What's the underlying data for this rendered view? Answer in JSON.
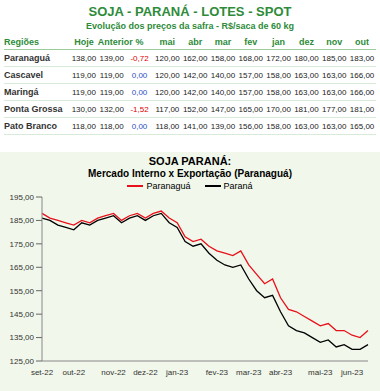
{
  "table": {
    "title": "SOJA - PARANÁ - LOTES - SPOT",
    "subtitle": "Evolução dos preços da safra - R$/saca de 60 kg",
    "columns": [
      "Regiões",
      "Hoje",
      "Anterior",
      "%",
      "mai",
      "abr",
      "mar",
      "fev",
      "jan",
      "dez",
      "nov",
      "out"
    ],
    "rows": [
      [
        "Paranaguá",
        "138,00",
        "139,00",
        "-0,72",
        "120,00",
        "162,00",
        "158,00",
        "168,00",
        "172,00",
        "180,00",
        "185,00",
        "183,00"
      ],
      [
        "Cascavel",
        "119,00",
        "119,00",
        "0,00",
        "120,00",
        "142,00",
        "140,00",
        "157,00",
        "158,00",
        "163,00",
        "163,00",
        "166,00"
      ],
      [
        "Maringá",
        "119,00",
        "119,00",
        "0,00",
        "120,00",
        "142,00",
        "140,00",
        "157,00",
        "158,00",
        "163,00",
        "163,00",
        "166,00"
      ],
      [
        "Ponta Grossa",
        "130,00",
        "132,00",
        "-1,52",
        "117,00",
        "152,00",
        "147,00",
        "165,00",
        "170,00",
        "181,00",
        "177,00",
        "181,00"
      ],
      [
        "Pato Branco",
        "118,00",
        "118,00",
        "0,00",
        "118,00",
        "141,00",
        "139,00",
        "156,00",
        "158,00",
        "163,00",
        "163,00",
        "165,00"
      ]
    ]
  },
  "chart_data": {
    "type": "line",
    "title": "SOJA PARANÁ:",
    "subtitle": "Mercado Interno x Exportação (Paranaguá)",
    "categories": [
      "set-22",
      null,
      null,
      null,
      "out-22",
      null,
      null,
      null,
      null,
      "nov-22",
      null,
      null,
      null,
      "dez-22",
      null,
      null,
      null,
      "jan-23",
      null,
      null,
      null,
      null,
      "fev-23",
      null,
      null,
      null,
      "mar-23",
      null,
      null,
      null,
      "abr-23",
      null,
      null,
      null,
      null,
      "mai-23",
      null,
      null,
      null,
      "jun-23",
      null,
      null
    ],
    "series": [
      {
        "name": "Paranaguá",
        "color": "#e8101a",
        "values": [
          188,
          186,
          185,
          184,
          183,
          185,
          184,
          186,
          187,
          188,
          185,
          187,
          188,
          186,
          188,
          189,
          186,
          184,
          178,
          176,
          177,
          174,
          172,
          171,
          170,
          172,
          166,
          162,
          158,
          160,
          152,
          147,
          146,
          144,
          142,
          140,
          141,
          138,
          138,
          136,
          135,
          138
        ]
      },
      {
        "name": "Paraná",
        "color": "#000000",
        "values": [
          186,
          185,
          183,
          182,
          181,
          184,
          183,
          185,
          186,
          187,
          184,
          186,
          187,
          185,
          187,
          188,
          184,
          182,
          176,
          174,
          175,
          171,
          168,
          166,
          165,
          166,
          160,
          155,
          152,
          153,
          146,
          140,
          138,
          137,
          135,
          133,
          134,
          131,
          132,
          130,
          130,
          132
        ]
      }
    ],
    "ylim": [
      125,
      195
    ],
    "yticks": [
      {
        "value": 125,
        "label": "125,00"
      },
      {
        "value": 135,
        "label": "135,00"
      },
      {
        "value": 145,
        "label": "145,00"
      },
      {
        "value": 155,
        "label": "155,00"
      },
      {
        "value": 165,
        "label": "165,00"
      },
      {
        "value": 175,
        "label": "175,00"
      },
      {
        "value": 185,
        "label": "185,00"
      },
      {
        "value": 195,
        "label": "195,00"
      }
    ],
    "grid": false,
    "legend": "top"
  }
}
